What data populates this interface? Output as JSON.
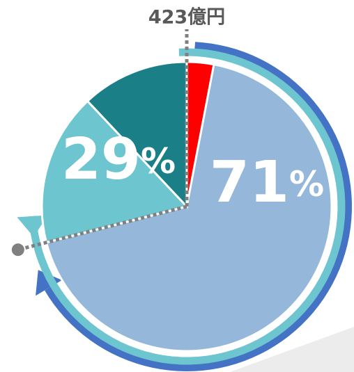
{
  "chart_data": {
    "type": "pie",
    "title": "423億円",
    "categories": [
      null,
      null,
      null,
      null
    ],
    "values": [
      3,
      68,
      17,
      12
    ],
    "colors": [
      "#ff0000",
      "#95b8da",
      "#6cc5cf",
      "#1b7f88"
    ],
    "groups": [
      {
        "value": 71,
        "label": "71%",
        "color": "#4472c4"
      },
      {
        "value": 29,
        "label": "29%",
        "color": "#6cc5cf"
      }
    ]
  }
}
